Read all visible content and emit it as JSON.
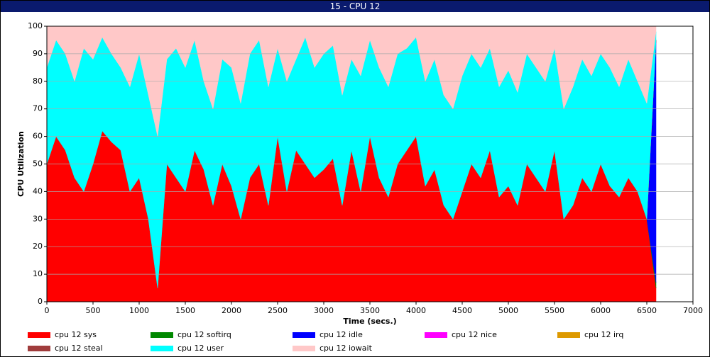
{
  "window_title": "15 - CPU 12",
  "chart_data": {
    "type": "stacked_area",
    "xlabel": "Time (secs.)",
    "ylabel": "CPU Utilization",
    "x": [
      0,
      100,
      200,
      300,
      400,
      500,
      600,
      700,
      800,
      900,
      1000,
      1100,
      1200,
      1300,
      1400,
      1500,
      1600,
      1700,
      1800,
      1900,
      2000,
      2100,
      2200,
      2300,
      2400,
      2500,
      2600,
      2700,
      2800,
      2900,
      3000,
      3100,
      3200,
      3300,
      3400,
      3500,
      3600,
      3700,
      3800,
      3900,
      4000,
      4100,
      4200,
      4300,
      4400,
      4500,
      4600,
      4700,
      4800,
      4900,
      5000,
      5100,
      5200,
      5300,
      5400,
      5500,
      5600,
      5700,
      5800,
      5900,
      6000,
      6100,
      6200,
      6300,
      6400,
      6500,
      6600
    ],
    "xlim": [
      0,
      7000
    ],
    "xticks": [
      0,
      500,
      1000,
      1500,
      2000,
      2500,
      3000,
      3500,
      4000,
      4500,
      5000,
      5500,
      6000,
      6500,
      7000
    ],
    "ylim": [
      0,
      100
    ],
    "yticks": [
      0,
      10,
      20,
      30,
      40,
      50,
      60,
      70,
      80,
      90,
      100
    ],
    "grid": true,
    "series": [
      {
        "name": "cpu 12 sys",
        "color": "#ff0000",
        "values": [
          50,
          60,
          55,
          45,
          40,
          50,
          62,
          58,
          55,
          40,
          45,
          30,
          5,
          50,
          45,
          40,
          55,
          48,
          35,
          50,
          42,
          30,
          45,
          50,
          35,
          60,
          40,
          55,
          50,
          45,
          48,
          52,
          35,
          55,
          40,
          60,
          45,
          38,
          50,
          55,
          60,
          42,
          48,
          35,
          30,
          40,
          50,
          45,
          55,
          38,
          42,
          35,
          50,
          45,
          40,
          55,
          30,
          35,
          45,
          40,
          50,
          42,
          38,
          45,
          40,
          30,
          5
        ]
      },
      {
        "name": "cpu 12 softirq",
        "color": "#008800",
        "values": [
          0,
          0,
          0,
          0,
          0,
          0,
          0,
          0,
          0,
          0,
          0,
          0,
          0,
          0,
          0,
          0,
          0,
          0,
          0,
          0,
          0,
          0,
          0,
          0,
          0,
          0,
          0,
          0,
          0,
          0,
          0,
          0,
          0,
          0,
          0,
          0,
          0,
          0,
          0,
          0,
          0,
          0,
          0,
          0,
          0,
          0,
          0,
          0,
          0,
          0,
          0,
          0,
          0,
          0,
          0,
          0,
          0,
          0,
          0,
          0,
          0,
          0,
          0,
          0,
          0,
          0,
          2
        ]
      },
      {
        "name": "cpu 12 idle",
        "color": "#0000ff",
        "values": [
          0,
          0,
          0,
          0,
          0,
          0,
          0,
          0,
          0,
          0,
          0,
          0,
          0,
          0,
          0,
          0,
          0,
          0,
          0,
          0,
          0,
          0,
          0,
          0,
          0,
          0,
          0,
          0,
          0,
          0,
          0,
          0,
          0,
          0,
          0,
          0,
          0,
          0,
          0,
          0,
          0,
          0,
          0,
          0,
          0,
          0,
          0,
          0,
          0,
          0,
          0,
          0,
          0,
          0,
          0,
          0,
          0,
          0,
          0,
          0,
          0,
          0,
          0,
          0,
          0,
          0,
          88
        ]
      },
      {
        "name": "cpu 12 nice",
        "color": "#ff00ff",
        "values": [
          0,
          0,
          0,
          0,
          0,
          0,
          0,
          0,
          0,
          0,
          0,
          0,
          0,
          0,
          0,
          0,
          0,
          0,
          0,
          0,
          0,
          0,
          0,
          0,
          0,
          0,
          0,
          0,
          0,
          0,
          0,
          0,
          0,
          0,
          0,
          0,
          0,
          0,
          0,
          0,
          0,
          0,
          0,
          0,
          0,
          0,
          0,
          0,
          0,
          0,
          0,
          0,
          0,
          0,
          0,
          0,
          0,
          0,
          0,
          0,
          0,
          0,
          0,
          0,
          0,
          0,
          0
        ]
      },
      {
        "name": "cpu 12 irq",
        "color": "#dd9900",
        "values": [
          0,
          0,
          0,
          0,
          0,
          0,
          0,
          0,
          0,
          0,
          0,
          0,
          0,
          0,
          0,
          0,
          0,
          0,
          0,
          0,
          0,
          0,
          0,
          0,
          0,
          0,
          0,
          0,
          0,
          0,
          0,
          0,
          0,
          0,
          0,
          0,
          0,
          0,
          0,
          0,
          0,
          0,
          0,
          0,
          0,
          0,
          0,
          0,
          0,
          0,
          0,
          0,
          0,
          0,
          0,
          0,
          0,
          0,
          0,
          0,
          0,
          0,
          0,
          0,
          0,
          0,
          0
        ]
      },
      {
        "name": "cpu 12 steal",
        "color": "#a03c3c",
        "values": [
          0,
          0,
          0,
          0,
          0,
          0,
          0,
          0,
          0,
          0,
          0,
          0,
          0,
          0,
          0,
          0,
          0,
          0,
          0,
          0,
          0,
          0,
          0,
          0,
          0,
          0,
          0,
          0,
          0,
          0,
          0,
          0,
          0,
          0,
          0,
          0,
          0,
          0,
          0,
          0,
          0,
          0,
          0,
          0,
          0,
          0,
          0,
          0,
          0,
          0,
          0,
          0,
          0,
          0,
          0,
          0,
          0,
          0,
          0,
          0,
          0,
          0,
          0,
          0,
          0,
          0,
          0
        ]
      },
      {
        "name": "cpu 12 user",
        "color": "#00ffff",
        "values": [
          35,
          35,
          35,
          35,
          52,
          38,
          34,
          32,
          30,
          38,
          45,
          45,
          55,
          38,
          47,
          45,
          40,
          32,
          35,
          38,
          43,
          42,
          45,
          45,
          43,
          32,
          40,
          33,
          46,
          40,
          42,
          41,
          40,
          33,
          42,
          35,
          40,
          40,
          40,
          37,
          36,
          38,
          40,
          40,
          40,
          42,
          40,
          40,
          37,
          40,
          42,
          41,
          40,
          40,
          40,
          37,
          40,
          43,
          43,
          42,
          40,
          43,
          40,
          43,
          40,
          42,
          3
        ]
      },
      {
        "name": "cpu 12 iowait",
        "color": "#ffc8c8",
        "values": [
          15,
          5,
          10,
          20,
          8,
          12,
          4,
          10,
          15,
          22,
          10,
          25,
          40,
          12,
          8,
          15,
          5,
          20,
          30,
          12,
          15,
          28,
          10,
          5,
          22,
          8,
          20,
          12,
          4,
          15,
          10,
          7,
          25,
          12,
          18,
          5,
          15,
          22,
          10,
          8,
          4,
          20,
          12,
          25,
          30,
          18,
          10,
          15,
          8,
          22,
          16,
          24,
          10,
          15,
          20,
          8,
          30,
          22,
          12,
          18,
          10,
          15,
          22,
          12,
          20,
          28,
          2
        ]
      }
    ]
  }
}
